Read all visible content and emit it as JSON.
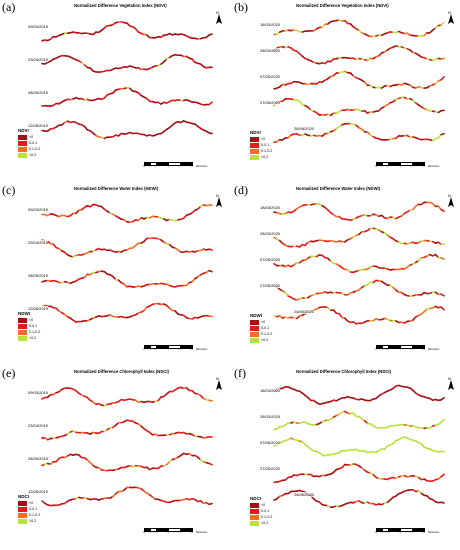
{
  "colors": {
    "lt0": "#a50f15",
    "c0": "#e41a1c",
    "c1": "#f46d27",
    "c2": "#b7e23c"
  },
  "legend_labels": [
    "<0",
    "0-0.1",
    "0.1-0.2",
    ">0.2"
  ],
  "scale": {
    "ticks": [
      "0",
      "1",
      "2",
      "4",
      "6",
      "8"
    ],
    "unit": "Kilometers"
  },
  "panels": [
    {
      "letter": "(a)",
      "title": "Normalized Difference Vegetation Index (NDVI)",
      "legend_title": "NDVI",
      "dates": [
        "09/03/2019",
        "23/04/2019",
        "28/05/2019",
        "12/06/2019"
      ],
      "mix": [
        0.72,
        0.2,
        0.05,
        0.03
      ]
    },
    {
      "letter": "(b)",
      "title": "Normalized Difference Vegetation Index (NDVI)",
      "legend_title": "NDVI",
      "dates": [
        "18/03/2020",
        "28/03/2020",
        "07/05/2020",
        "27/05/2020",
        "26/06/2020"
      ],
      "mix": [
        0.35,
        0.25,
        0.2,
        0.2
      ]
    },
    {
      "letter": "(c)",
      "title": "Normalized Difference Water Index (NDWI)",
      "legend_title": "NDWI",
      "dates": [
        "09/03/2019",
        "23/04/2019",
        "28/05/2019",
        "12/06/2019"
      ],
      "mix": [
        0.3,
        0.3,
        0.3,
        0.1
      ]
    },
    {
      "letter": "(d)",
      "title": "Normalized Difference Water Index (NDWI)",
      "legend_title": "NDWI",
      "dates": [
        "18/03/2020",
        "28/03/2020",
        "07/05/2020",
        "27/05/2020",
        "26/06/2020"
      ],
      "mix": [
        0.15,
        0.35,
        0.3,
        0.2
      ]
    },
    {
      "letter": "(e)",
      "title": "Normalized Difference Chlorophyll Index (NDCI)",
      "legend_title": "NDCI",
      "dates": [
        "09/03/2019",
        "23/04/2019",
        "28/05/2019",
        "12/06/2019"
      ],
      "mix": [
        0.35,
        0.4,
        0.15,
        0.1
      ]
    },
    {
      "letter": "(f)",
      "title": "Normalized Difference Chlorophyll Index (NDCI)",
      "legend_title": "NDCI",
      "dates": [
        "18/03/2020",
        "28/03/2020",
        "07/05/2020",
        "27/05/2020",
        "26/06/2020"
      ],
      "mix": [
        0.35,
        0.3,
        0.15,
        0.2
      ],
      "strip_mix": [
        [
          0.85,
          0.15,
          0,
          0
        ],
        [
          0.05,
          0.05,
          0.1,
          0.8
        ],
        [
          0,
          0,
          0.05,
          0.95
        ],
        [
          0.4,
          0.4,
          0.1,
          0.1
        ],
        [
          0.6,
          0.3,
          0.05,
          0.05
        ]
      ]
    }
  ]
}
